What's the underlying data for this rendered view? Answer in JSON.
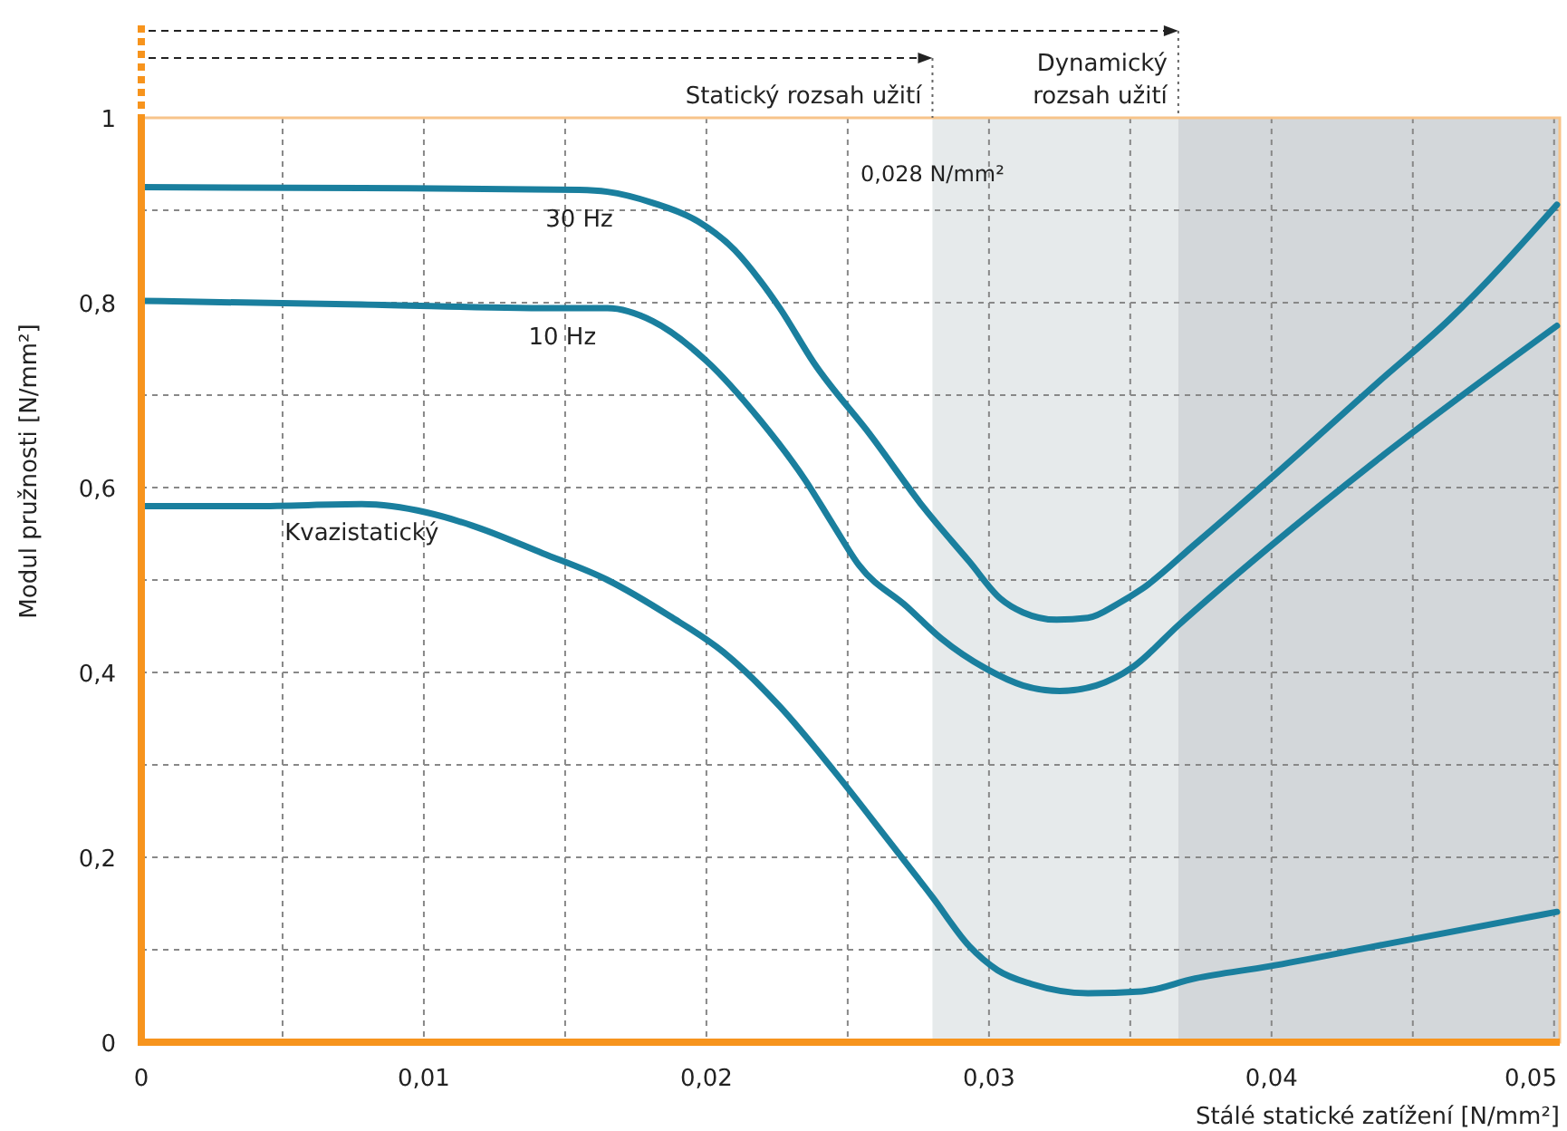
{
  "chart_data": {
    "type": "line",
    "xlabel": "Stálé statické zatížení [N/mm²]",
    "ylabel": "Modul pružnosti [N/mm²]",
    "xlim": [
      0,
      0.0502
    ],
    "ylim": [
      0,
      1
    ],
    "xticks": [
      0,
      {
        "value": 0.005,
        "label": null
      },
      {
        "value": 0.01,
        "label": "0,01"
      },
      {
        "value": 0.015,
        "label": null
      },
      {
        "value": 0.02,
        "label": "0,02"
      },
      {
        "value": 0.025,
        "label": null
      },
      {
        "value": 0.03,
        "label": "0,03"
      },
      {
        "value": 0.035,
        "label": null
      },
      {
        "value": 0.04,
        "label": "0,04"
      },
      {
        "value": 0.045,
        "label": null
      },
      {
        "value": 0.05,
        "label": "0,05"
      }
    ],
    "yticks": [
      0,
      {
        "value": 0.1,
        "label": null
      },
      {
        "value": 0.2,
        "label": "0,2"
      },
      {
        "value": 0.3,
        "label": null
      },
      {
        "value": 0.4,
        "label": "0,4"
      },
      {
        "value": 0.5,
        "label": null
      },
      {
        "value": 0.6,
        "label": "0,6"
      },
      {
        "value": 0.7,
        "label": null
      },
      {
        "value": 0.8,
        "label": "0,8"
      },
      {
        "value": 0.9,
        "label": null
      },
      1
    ],
    "grid": true,
    "line_style": "solid",
    "series": [
      {
        "name": "30 Hz",
        "color": "#1a7f9e",
        "x": [
          0,
          0.0078,
          0.0155,
          0.0165,
          0.0181,
          0.0197,
          0.021,
          0.0219,
          0.0226,
          0.0238,
          0.0258,
          0.0277,
          0.0293,
          0.0304,
          0.0312,
          0.0324,
          0.0335,
          0.0346,
          0.0354,
          0.0373,
          0.0399,
          0.0437,
          0.0463,
          0.0501
        ],
        "values": [
          0.925,
          0.924,
          0.922,
          0.92,
          0.908,
          0.888,
          0.857,
          0.824,
          0.794,
          0.735,
          0.657,
          0.578,
          0.52,
          0.48,
          0.465,
          0.457,
          0.459,
          0.475,
          0.49,
          0.539,
          0.608,
          0.712,
          0.782,
          0.906
        ]
      },
      {
        "name": "10 Hz",
        "color": "#1a7f9e",
        "x": [
          0,
          0.0078,
          0.0149,
          0.0165,
          0.0181,
          0.02,
          0.0219,
          0.0235,
          0.0245,
          0.0254,
          0.0271,
          0.0283,
          0.0299,
          0.0312,
          0.0325,
          0.0338,
          0.0351,
          0.0367,
          0.0399,
          0.0437,
          0.0501
        ],
        "values": [
          0.802,
          0.798,
          0.794,
          0.794,
          0.78,
          0.737,
          0.673,
          0.608,
          0.559,
          0.516,
          0.471,
          0.437,
          0.404,
          0.386,
          0.38,
          0.386,
          0.406,
          0.451,
          0.535,
          0.629,
          0.775
        ]
      },
      {
        "name": "Kvazistatický",
        "color": "#1a7f9e",
        "x": [
          0,
          0.004,
          0.0078,
          0.0101,
          0.0117,
          0.0142,
          0.0165,
          0.0187,
          0.0206,
          0.0226,
          0.0245,
          0.0264,
          0.028,
          0.0293,
          0.0303,
          0.0315,
          0.0335,
          0.0354,
          0.0373,
          0.0399,
          0.0437,
          0.0501
        ],
        "values": [
          0.58,
          0.58,
          0.582,
          0.573,
          0.559,
          0.529,
          0.5,
          0.461,
          0.422,
          0.363,
          0.294,
          0.22,
          0.157,
          0.104,
          0.078,
          0.063,
          0.053,
          0.055,
          0.069,
          0.082,
          0.104,
          0.141
        ]
      }
    ],
    "bands": [
      {
        "axis": "x",
        "from": 0.028,
        "to": 0.0367,
        "color": "#e6eaeb"
      },
      {
        "axis": "x",
        "from": 0.0367,
        "to": 0.0502,
        "color": "#d3d7da"
      }
    ],
    "ref_lines": [
      {
        "axis": "x",
        "value": 0.028,
        "label": "Statický rozsah užití",
        "line_style": "dashed"
      },
      {
        "axis": "x",
        "value": 0.0367,
        "label": "Dynamický\nrozsah užití",
        "line_style": "dashed"
      }
    ],
    "annotations": [
      {
        "text": "0,028 N/mm²",
        "x": 0.028,
        "y": 0.965
      }
    ]
  }
}
